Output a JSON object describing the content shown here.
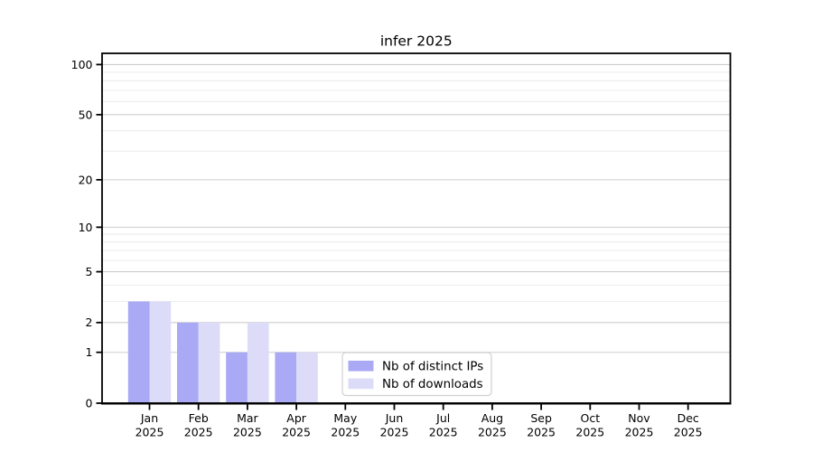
{
  "chart_data": {
    "type": "bar",
    "title": "infer 2025",
    "y_scale": "log1p",
    "y_ticks": [
      0,
      1,
      2,
      5,
      10,
      20,
      50,
      100
    ],
    "y_minor_gridlines": [
      3,
      4,
      6,
      7,
      8,
      9,
      30,
      40,
      60,
      70,
      80,
      90
    ],
    "ylim": [
      0,
      116
    ],
    "grid": true,
    "months": [
      "Jan",
      "Feb",
      "Mar",
      "Apr",
      "May",
      "Jun",
      "Jul",
      "Aug",
      "Sep",
      "Oct",
      "Nov",
      "Dec"
    ],
    "year": "2025",
    "series": [
      {
        "name": "Nb of distinct IPs",
        "color": "#a9a9f6",
        "values": [
          3,
          2,
          1,
          1,
          0,
          0,
          0,
          0,
          0,
          0,
          0,
          0
        ]
      },
      {
        "name": "Nb of downloads",
        "color": "#dcdcf9",
        "values": [
          3,
          2,
          2,
          1,
          0,
          0,
          0,
          0,
          0,
          0,
          0,
          0
        ]
      }
    ],
    "legend_position": "inside lower-center",
    "colors": {
      "axis": "#000000",
      "major_grid": "#cdcdcd",
      "minor_grid": "#ededed",
      "legend_border": "#d0d0d0",
      "legend_background": "#ffffff",
      "plot_background": "#ffffff"
    }
  }
}
